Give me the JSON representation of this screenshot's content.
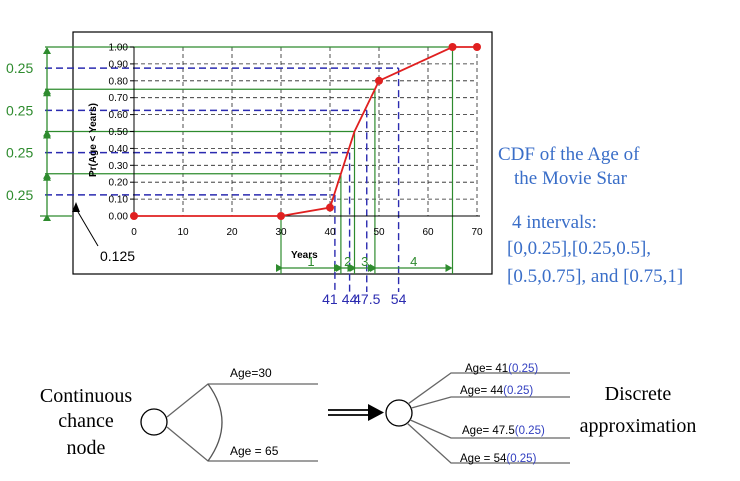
{
  "cdf": {
    "y_axis_label": "Pr(Age < Years)",
    "x_axis_label": "Years",
    "y_ticks": [
      "0.00",
      "0.10",
      "0.20",
      "0.30",
      "0.40",
      "0.50",
      "0.60",
      "0.70",
      "0.80",
      "0.90",
      "1.00"
    ],
    "x_ticks": [
      "0",
      "10",
      "20",
      "30",
      "40",
      "50",
      "60",
      "70"
    ],
    "points": [
      [
        0,
        0
      ],
      [
        30,
        0
      ],
      [
        40,
        0.05
      ],
      [
        45,
        0.5
      ],
      [
        50,
        0.8
      ],
      [
        65,
        1.0
      ],
      [
        70,
        1.0
      ]
    ],
    "prob_brackets": [
      "0.25",
      "0.25",
      "0.25",
      "0.25"
    ],
    "half_label": "0.125",
    "interval_numbers": [
      "1",
      "2",
      "3",
      "4"
    ],
    "representatives": [
      "41",
      "44",
      "47.5",
      "54"
    ]
  },
  "caption": {
    "title_line1": "CDF of the Age of",
    "title_line2": "the Movie Star",
    "intervals_line1": "4 intervals:",
    "intervals_line2": "[0,0.25],[0.25,0.5],",
    "intervals_line3": "[0.5,0.75], and [0.75,1]"
  },
  "chart_data": {
    "type": "line",
    "title": "",
    "xlabel": "Years",
    "ylabel": "Pr(Age < Years)",
    "xlim": [
      0,
      70
    ],
    "ylim": [
      0,
      1
    ],
    "grid": true,
    "x": [
      0,
      30,
      40,
      45,
      50,
      65,
      70
    ],
    "series": [
      {
        "values": [
          0,
          0,
          0.05,
          0.5,
          0.8,
          1.0,
          1.0
        ]
      }
    ],
    "colors": {
      "curve": "#e02020",
      "marker": "#e02020",
      "bracket": "#2e8b2e",
      "dashed": "#2b2bb0",
      "text_blue": "#3a6ec8"
    }
  },
  "continuous": {
    "label_line1": "Continuous",
    "label_line2": "chance",
    "label_line3": "node",
    "top_branch": "Age=30",
    "bottom_branch": "Age = 65"
  },
  "discrete": {
    "label_line1": "Discrete",
    "label_line2": "approximation",
    "branches": [
      {
        "age": "Age= 41",
        "prob": "(0.25)"
      },
      {
        "age": "Age= 44",
        "prob": "(0.25)"
      },
      {
        "age": "Age= 47.5",
        "prob": "(0.25)"
      },
      {
        "age": "Age = 54",
        "prob": "(0.25)"
      }
    ]
  }
}
